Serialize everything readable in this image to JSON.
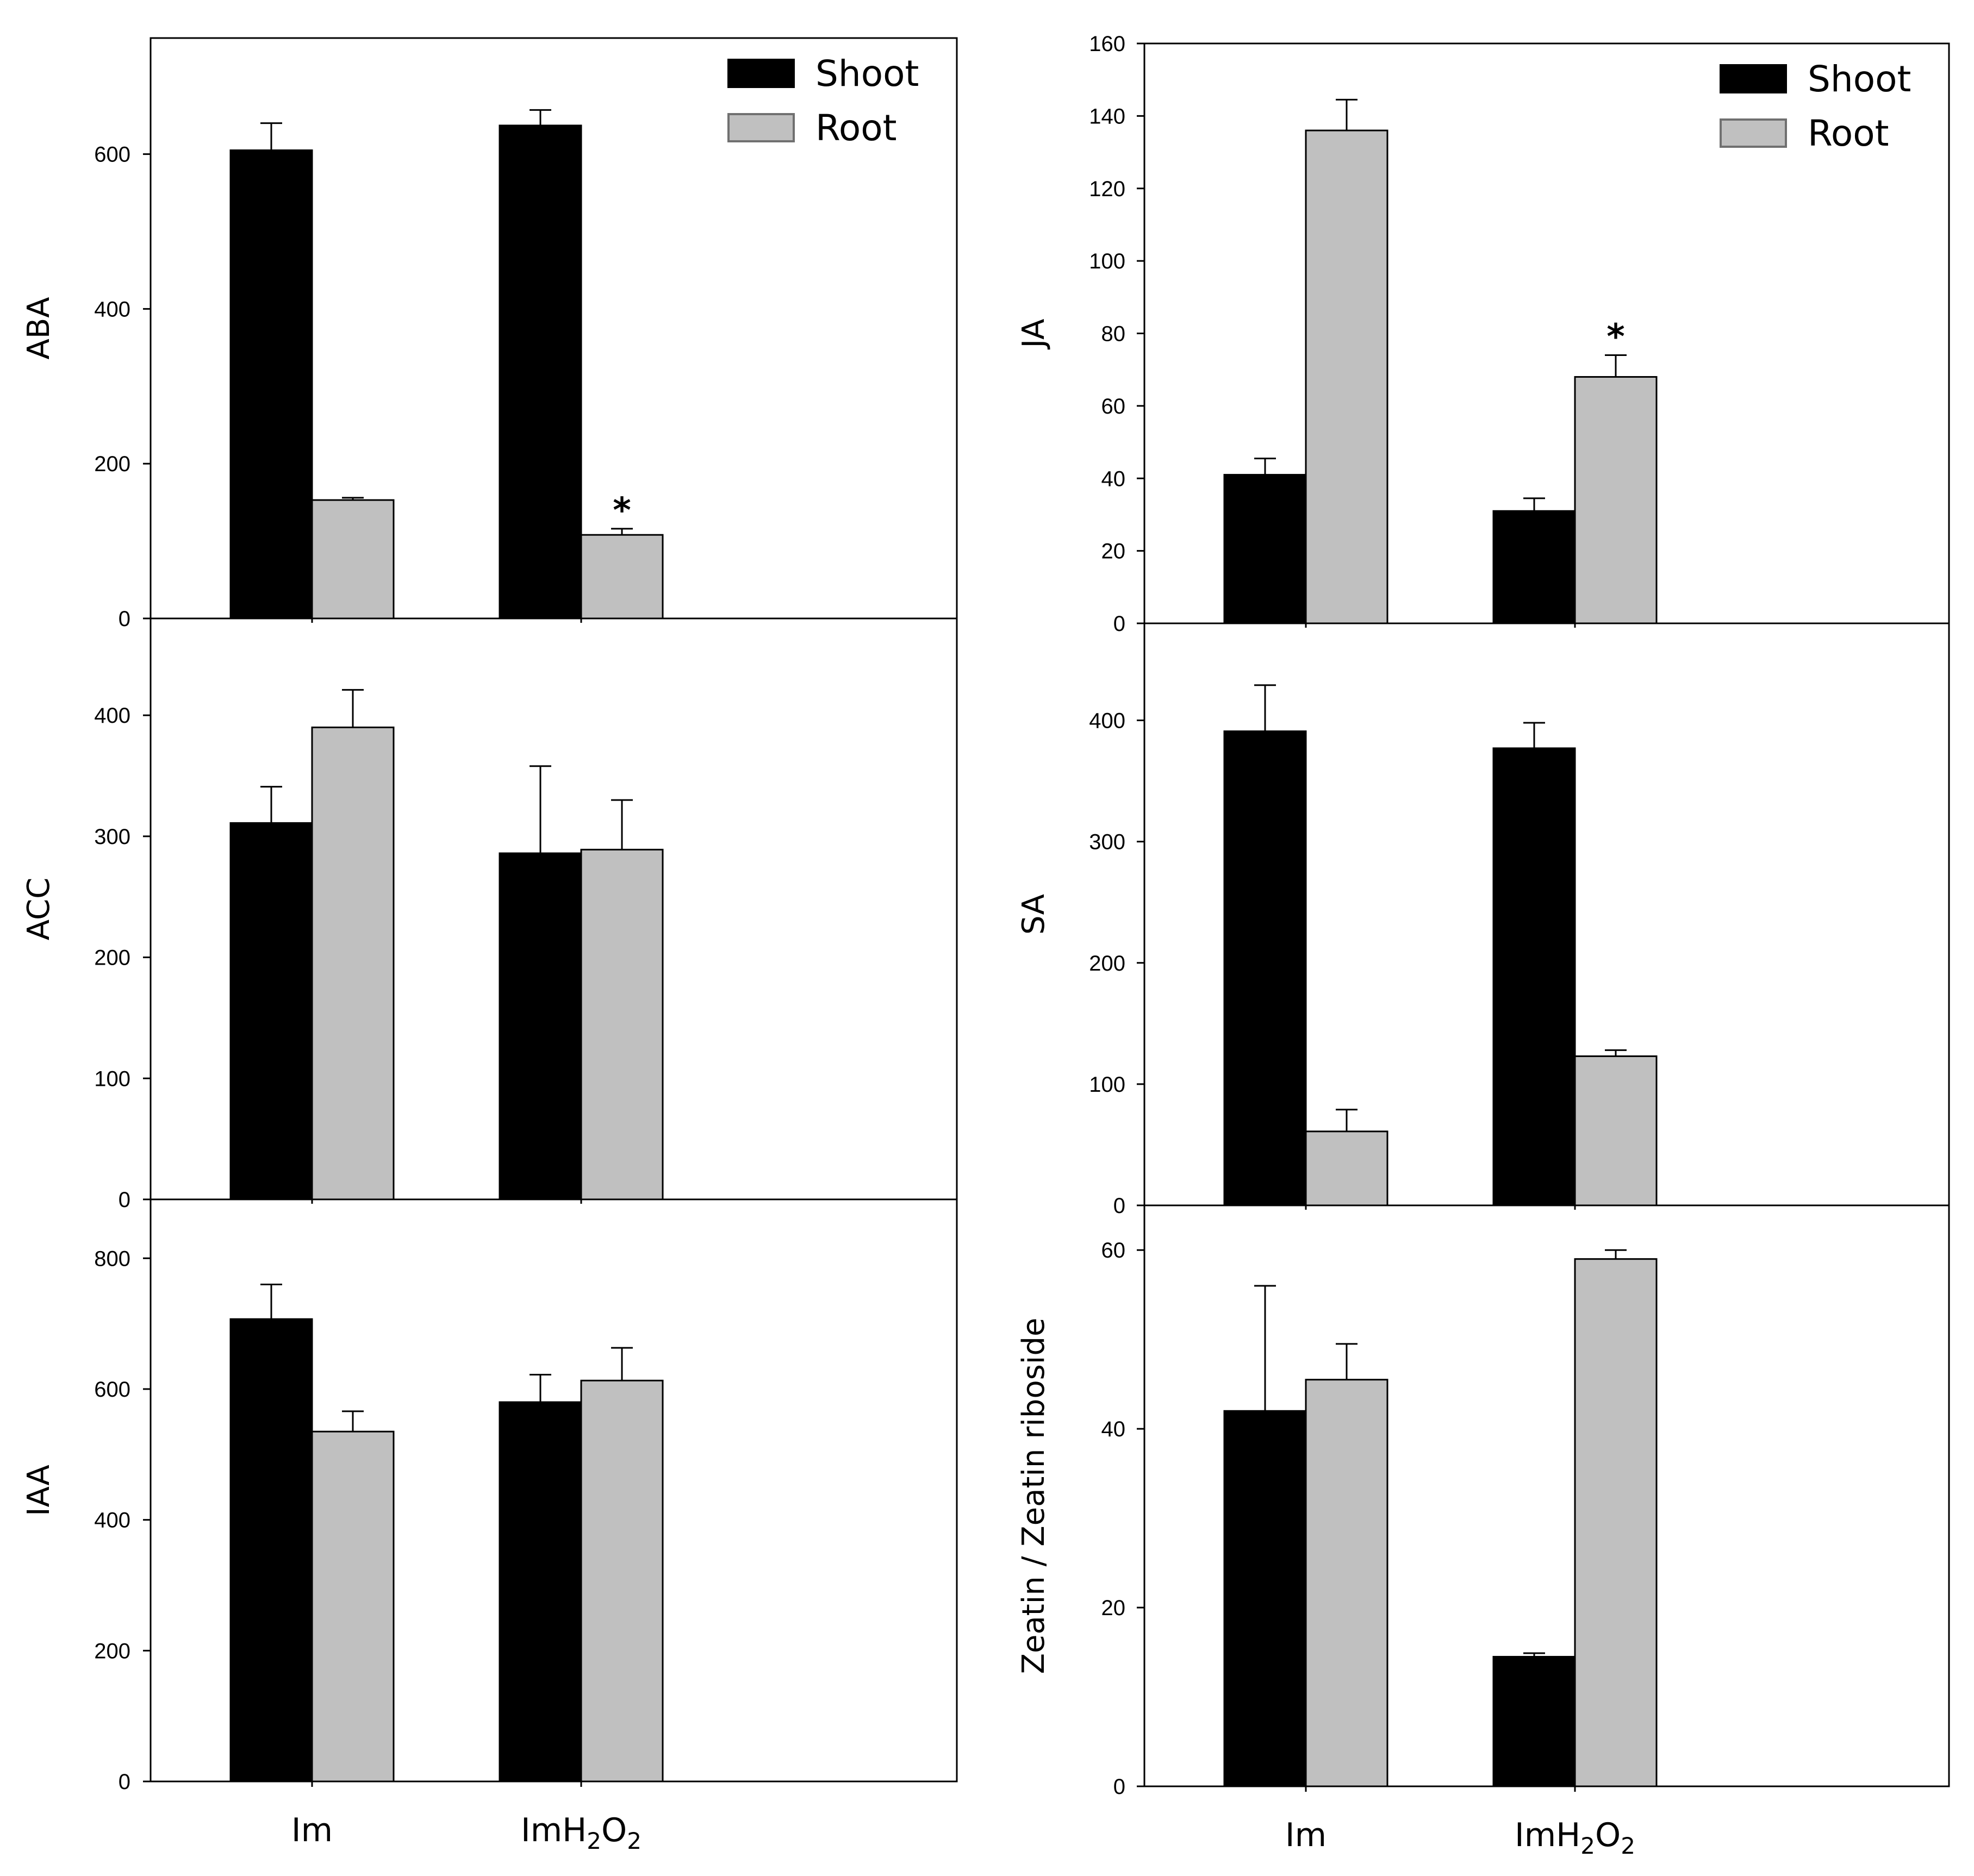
{
  "chart_data": [
    {
      "type": "bar",
      "ylabel": "ABA",
      "categories": [
        "Im",
        "ImH2O2"
      ],
      "series": [
        {
          "name": "Shoot",
          "values": [
            605,
            637
          ],
          "errors": [
            35,
            20
          ]
        },
        {
          "name": "Root",
          "values": [
            153,
            108
          ],
          "errors": [
            3,
            8
          ]
        }
      ],
      "ylim": [
        0,
        750
      ],
      "yticks": [
        0,
        200,
        400,
        600
      ],
      "significance": [
        {
          "category": "ImH2O2",
          "series": "Root",
          "label": "*"
        }
      ],
      "legend": [
        "Shoot",
        "Root"
      ]
    },
    {
      "type": "bar",
      "ylabel": "ACC",
      "categories": [
        "Im",
        "ImH2O2"
      ],
      "series": [
        {
          "name": "Shoot",
          "values": [
            311,
            286
          ],
          "errors": [
            30,
            72
          ]
        },
        {
          "name": "Root",
          "values": [
            390,
            289
          ],
          "errors": [
            31,
            41
          ]
        }
      ],
      "ylim": [
        0,
        480
      ],
      "yticks": [
        0,
        100,
        200,
        300,
        400
      ]
    },
    {
      "type": "bar",
      "ylabel": "IAA",
      "categories": [
        "Im",
        "ImH2O2"
      ],
      "series": [
        {
          "name": "Shoot",
          "values": [
            707,
            580
          ],
          "errors": [
            53,
            42
          ]
        },
        {
          "name": "Root",
          "values": [
            535,
            613
          ],
          "errors": [
            31,
            50
          ]
        }
      ],
      "ylim": [
        0,
        890
      ],
      "yticks": [
        0,
        200,
        400,
        600,
        800
      ]
    },
    {
      "type": "bar",
      "ylabel": "JA",
      "categories": [
        "Im",
        "ImH2O2"
      ],
      "series": [
        {
          "name": "Shoot",
          "values": [
            41,
            31
          ],
          "errors": [
            4.5,
            3.5
          ]
        },
        {
          "name": "Root",
          "values": [
            136,
            68
          ],
          "errors": [
            8.5,
            6
          ]
        }
      ],
      "ylim": [
        0,
        160
      ],
      "yticks": [
        0,
        20,
        40,
        60,
        80,
        100,
        120,
        140,
        160
      ],
      "significance": [
        {
          "category": "ImH2O2",
          "series": "Root",
          "label": "*"
        }
      ],
      "legend": [
        "Shoot",
        "Root"
      ]
    },
    {
      "type": "bar",
      "ylabel": "SA",
      "categories": [
        "Im",
        "ImH2O2"
      ],
      "series": [
        {
          "name": "Shoot",
          "values": [
            391,
            377
          ],
          "errors": [
            38,
            21
          ]
        },
        {
          "name": "Root",
          "values": [
            61,
            123
          ],
          "errors": [
            18,
            5
          ]
        }
      ],
      "ylim": [
        0,
        480
      ],
      "yticks": [
        0,
        100,
        200,
        300,
        400
      ]
    },
    {
      "type": "bar",
      "ylabel": "Zeatin / Zeatin riboside",
      "categories": [
        "Im",
        "ImH2O2"
      ],
      "series": [
        {
          "name": "Shoot",
          "values": [
            42,
            14.5
          ],
          "errors": [
            14,
            0.4
          ]
        },
        {
          "name": "Root",
          "values": [
            45.5,
            59
          ],
          "errors": [
            4,
            1
          ]
        }
      ],
      "ylim": [
        0,
        65
      ],
      "yticks": [
        0,
        20,
        40,
        60
      ]
    }
  ]
}
